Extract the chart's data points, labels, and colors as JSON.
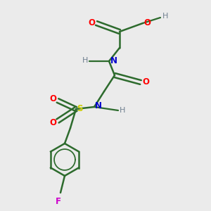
{
  "background_color": "#ebebeb",
  "bond_color": "#2d6b2d",
  "atom_colors": {
    "O": "#ff0000",
    "N": "#0000cc",
    "S": "#cccc00",
    "F": "#cc00cc",
    "H": "#708090",
    "C": "#2d6b2d"
  },
  "lw": 1.8,
  "fs": 9
}
